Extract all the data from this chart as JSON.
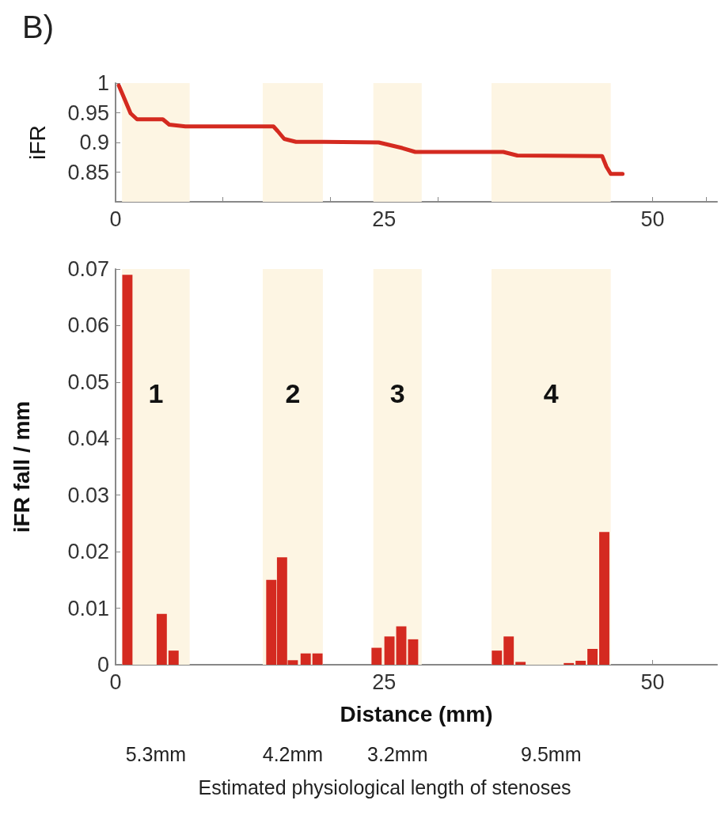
{
  "chart_data": [
    {
      "type": "line",
      "title": "B)",
      "ylabel": "iFR",
      "xlim": [
        0,
        56
      ],
      "ylim": [
        0.8,
        1.0
      ],
      "xticks": [
        0,
        {
          "value": 5,
          "label": null
        },
        {
          "value": 10,
          "label": null
        },
        {
          "value": 15,
          "label": null
        },
        {
          "value": 20,
          "label": null
        },
        25,
        {
          "value": 30,
          "label": null
        },
        {
          "value": 35,
          "label": null
        },
        {
          "value": 40,
          "label": null
        },
        {
          "value": 45,
          "label": null
        },
        50,
        {
          "value": 55,
          "label": null
        }
      ],
      "yticks": [
        0.85,
        0.9,
        0.95,
        1
      ],
      "x": [
        0.3,
        0.7,
        1.4,
        2.0,
        4.4,
        5.0,
        6.5,
        14.7,
        15.1,
        15.7,
        16.8,
        19.4,
        24.5,
        26.6,
        27.9,
        36.1,
        37.4,
        45.3,
        45.7,
        46.1,
        47.2
      ],
      "series": [
        {
          "color": "#d42a20",
          "values": [
            0.996,
            0.979,
            0.949,
            0.939,
            0.939,
            0.93,
            0.927,
            0.927,
            0.919,
            0.906,
            0.901,
            0.901,
            0.9,
            0.891,
            0.884,
            0.884,
            0.878,
            0.877,
            0.859,
            0.847,
            0.847
          ]
        }
      ],
      "bands": [
        {
          "axis": "x",
          "from": 0.6,
          "to": 6.9,
          "label": null,
          "color": "#fdf5e3"
        },
        {
          "axis": "x",
          "from": 13.7,
          "to": 19.3,
          "label": null,
          "color": "#fdf5e3"
        },
        {
          "axis": "x",
          "from": 24,
          "to": 28.5,
          "label": null,
          "color": "#fdf5e3"
        },
        {
          "axis": "x",
          "from": 35,
          "to": 46.1,
          "label": null,
          "color": "#fdf5e3"
        }
      ],
      "marker": "none",
      "line_style": "solid",
      "grid": false
    },
    {
      "type": "bar",
      "xlabel": "Distance (mm)",
      "ylabel": "iFR fall / mm",
      "xlim": [
        0,
        56
      ],
      "ylim": [
        0,
        0.07
      ],
      "xticks": [
        0,
        25,
        50
      ],
      "yticks": [
        0,
        0.01,
        0.02,
        0.03,
        0.04,
        0.05,
        0.06,
        0.07
      ],
      "x": [
        1.1,
        4.3,
        5.4,
        14.5,
        15.5,
        16.5,
        17.7,
        18.8,
        24.3,
        25.5,
        26.6,
        27.7,
        35.5,
        36.6,
        37.7,
        42.2,
        43.3,
        44.4,
        45.5
      ],
      "series": [
        {
          "color": "#d42a20",
          "values": [
            0.069,
            0.009,
            0.0025,
            0.015,
            0.019,
            0.0008,
            0.002,
            0.002,
            0.003,
            0.005,
            0.0068,
            0.0045,
            0.0025,
            0.005,
            0.0005,
            0.0003,
            0.0007,
            0.0028,
            0.0235
          ]
        }
      ],
      "bands": [
        {
          "axis": "x",
          "from": 0.6,
          "to": 6.9,
          "label": "1",
          "color": "#fdf5e3"
        },
        {
          "axis": "x",
          "from": 13.7,
          "to": 19.3,
          "label": "2",
          "color": "#fdf5e3"
        },
        {
          "axis": "x",
          "from": 24,
          "to": 28.5,
          "label": "3",
          "color": "#fdf5e3"
        },
        {
          "axis": "x",
          "from": 35,
          "to": 46.1,
          "label": "4",
          "color": "#fdf5e3"
        }
      ],
      "annotations": [
        "5.3mm",
        "4.2mm",
        "3.2mm",
        "9.5mm",
        "Estimated physiological length of stenoses"
      ],
      "grid": false
    }
  ]
}
